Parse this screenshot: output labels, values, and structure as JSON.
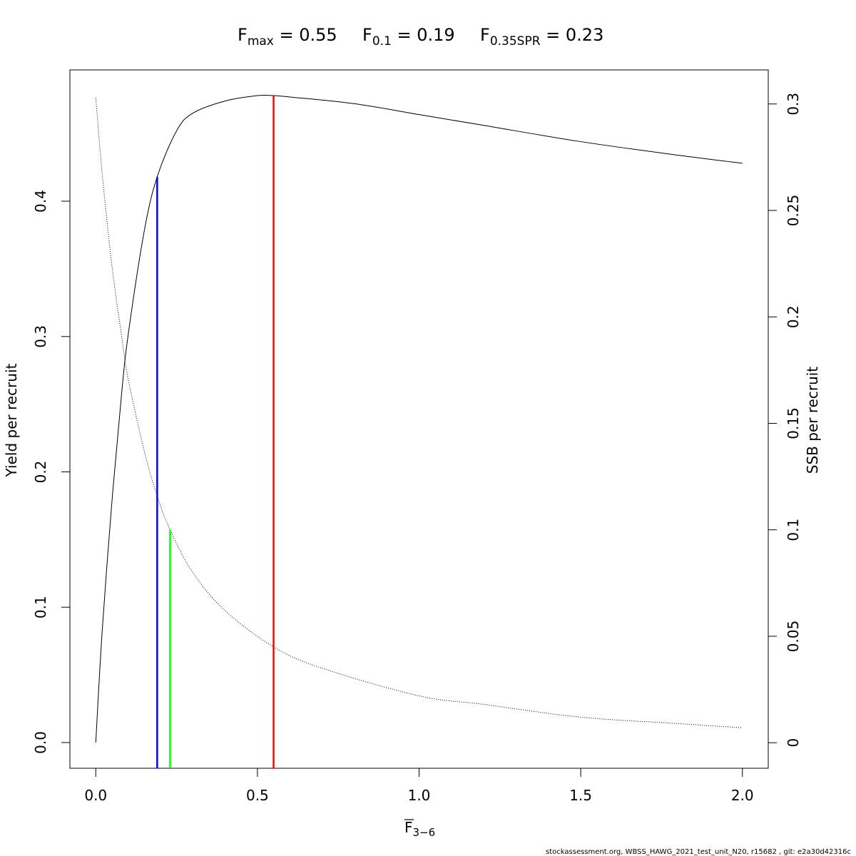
{
  "title": {
    "fmax": {
      "label": "F",
      "sub": "max",
      "eq": " = ",
      "value": "0.55"
    },
    "f01": {
      "label": "F",
      "sub": "0.1",
      "eq": " = ",
      "value": "0.19"
    },
    "f035": {
      "label": "F",
      "sub": "0.35SPR",
      "eq": " = ",
      "value": "0.23"
    }
  },
  "footer": "stockassessment.org, WBSS_HAWG_2021_test_unit_N20, r15682 , git: e2a30d42316c",
  "chart_data": {
    "type": "line",
    "xlabel": {
      "main": "F",
      "sub": "3−6",
      "overline": true
    },
    "ylabel_left": "Yield per recruit",
    "ylabel_right": "SSB per recruit",
    "xlim": [
      -0.08,
      2.08
    ],
    "ylim_left": [
      -0.019,
      0.497
    ],
    "ylim_right": [
      -0.012,
      0.316
    ],
    "x_ticks": [
      {
        "value": 0.0,
        "label": "0.0"
      },
      {
        "value": 0.5,
        "label": "0.5"
      },
      {
        "value": 1.0,
        "label": "1.0"
      },
      {
        "value": 1.5,
        "label": "1.5"
      },
      {
        "value": 2.0,
        "label": "2.0"
      }
    ],
    "y_left_ticks": [
      {
        "value": 0.0,
        "label": "0.0"
      },
      {
        "value": 0.1,
        "label": "0.1"
      },
      {
        "value": 0.2,
        "label": "0.2"
      },
      {
        "value": 0.3,
        "label": "0.3"
      },
      {
        "value": 0.4,
        "label": "0.4"
      }
    ],
    "y_right_ticks": [
      {
        "value": 0.0,
        "label": "0"
      },
      {
        "value": 0.05,
        "label": "0.05"
      },
      {
        "value": 0.1,
        "label": "0.1"
      },
      {
        "value": 0.15,
        "label": "0.15"
      },
      {
        "value": 0.2,
        "label": "0.2"
      },
      {
        "value": 0.25,
        "label": "0.25"
      },
      {
        "value": 0.3,
        "label": "0.3"
      }
    ],
    "series": [
      {
        "axis": "left",
        "style": "solid",
        "color": "#000000",
        "x": [
          0,
          0.02,
          0.05,
          0.08,
          0.1,
          0.15,
          0.19,
          0.25,
          0.3,
          0.4,
          0.5,
          0.55,
          0.6,
          0.8,
          1.0,
          1.2,
          1.5,
          1.8,
          2.0
        ],
        "y": [
          0.0,
          0.083,
          0.178,
          0.258,
          0.301,
          0.378,
          0.418,
          0.452,
          0.465,
          0.474,
          0.478,
          0.478,
          0.477,
          0.472,
          0.464,
          0.456,
          0.444,
          0.434,
          0.428
        ]
      },
      {
        "axis": "right",
        "style": "dotted",
        "color": "#000000",
        "x": [
          0,
          0.02,
          0.05,
          0.08,
          0.1,
          0.15,
          0.19,
          0.23,
          0.3,
          0.4,
          0.55,
          0.7,
          1.0,
          1.2,
          1.5,
          1.8,
          2.0
        ],
        "y": [
          0.303,
          0.267,
          0.224,
          0.191,
          0.171,
          0.137,
          0.116,
          0.1,
          0.08,
          0.062,
          0.045,
          0.035,
          0.022,
          0.018,
          0.012,
          0.009,
          0.007
        ]
      }
    ],
    "reference_lines": [
      {
        "x": 0.19,
        "y_top": 0.418,
        "axis": "left",
        "color": "#0000ff"
      },
      {
        "x": 0.23,
        "y_top": 0.1,
        "axis": "right",
        "color": "#00ff00"
      },
      {
        "x": 0.55,
        "y_top": 0.478,
        "axis": "left",
        "color": "#ff0000"
      }
    ]
  }
}
